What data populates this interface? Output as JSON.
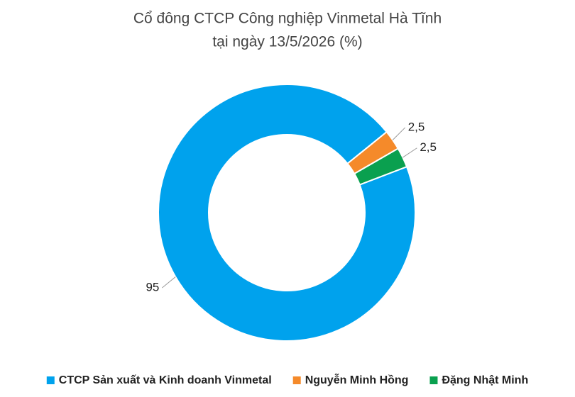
{
  "chart_data": {
    "type": "donut",
    "title": [
      "Cổ đông CTCP Công nghiệp Vinmetal Hà Tĩnh",
      "tại ngày 13/5/2026 (%)"
    ],
    "categories": [
      "CTCP Sản xuất và Kinh doanh Vinmetal",
      "Nguyễn Minh Hồng",
      "Đặng Nhật Minh"
    ],
    "values": [
      95,
      2.5,
      2.5
    ],
    "value_labels": [
      "95",
      "2,5",
      "2,5"
    ],
    "colors": [
      "#00a2ed",
      "#f58a2a",
      "#0aa04f"
    ],
    "legend": "bottom"
  }
}
